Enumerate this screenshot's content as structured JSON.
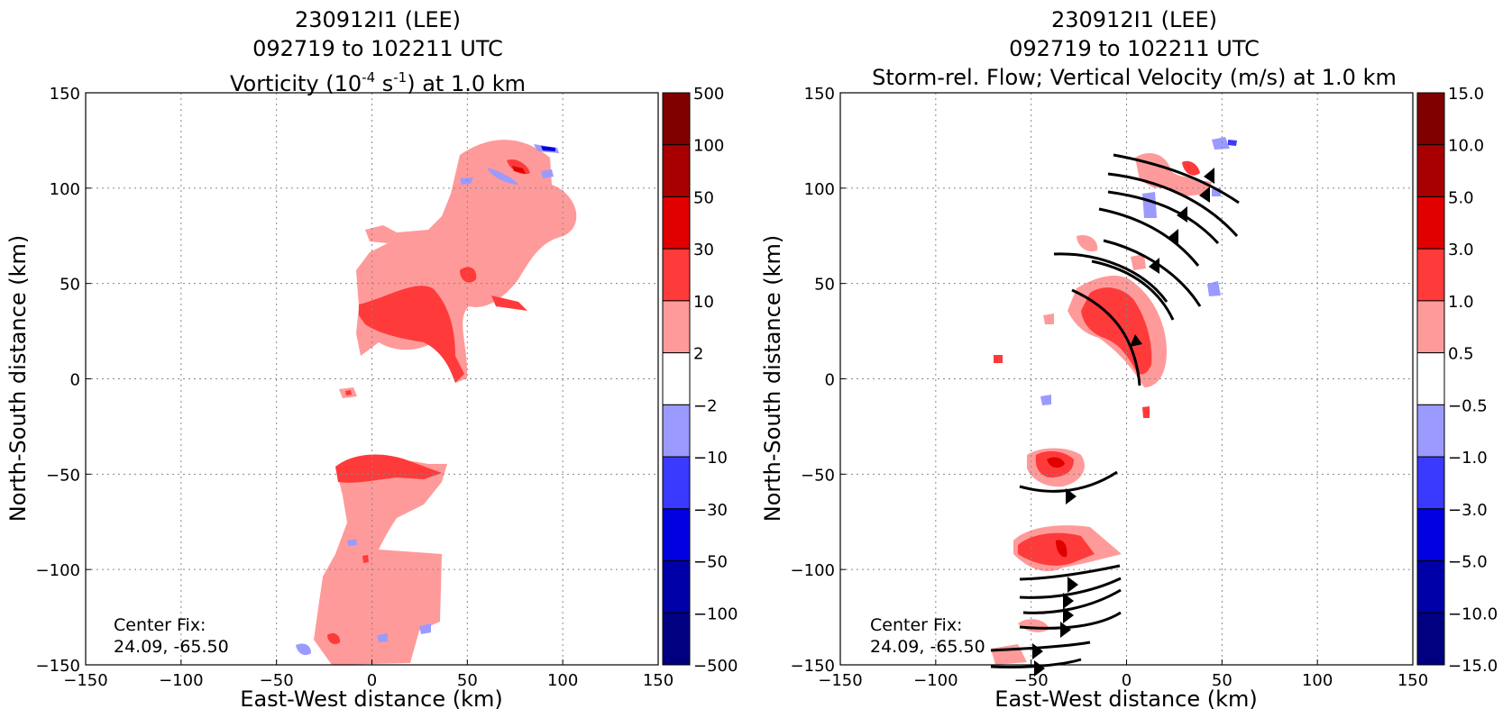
{
  "colors": {
    "pink": "#ff9a9a",
    "red": "#ff3a3a",
    "deep_red": "#e00000",
    "lavender": "#9a9aff",
    "blue": "#3a3aff",
    "dark_blue": "#0000e0",
    "grid": "#888888"
  },
  "colorbar_colors": [
    "#000080",
    "#0000a8",
    "#0000e0",
    "#3a3aff",
    "#9a9aff",
    "#ffffff",
    "#ff9a9a",
    "#ff3a3a",
    "#e00000",
    "#a80000",
    "#800000"
  ],
  "chart_data": [
    {
      "type": "heatmap",
      "title_lines": [
        "230912I1 (LEE)",
        "092719 to 102211 UTC"
      ],
      "title_var_prefix": "Vorticity (10",
      "title_var_exp1": "-4",
      "title_var_mid": " s",
      "title_var_exp2": "-1",
      "title_var_suffix": ") at 1.0 km",
      "xlabel": "East-West distance (km)",
      "ylabel": "North-South distance (km)",
      "xlim": [
        -150,
        150
      ],
      "ylim": [
        -150,
        150
      ],
      "xticks": [
        "−150",
        "−100",
        "−50",
        "0",
        "50",
        "100",
        "150"
      ],
      "yticks": [
        "150",
        "100",
        "50",
        "0",
        "−50",
        "−100",
        "−150"
      ],
      "grid": true,
      "colorbar_levels": [
        "500",
        "100",
        "50",
        "30",
        "10",
        "2",
        "−2",
        "−10",
        "−30",
        "−50",
        "−100",
        "−500"
      ],
      "annotation": [
        "Center Fix:",
        "24.09, -65.50"
      ]
    },
    {
      "type": "heatmap",
      "title_lines": [
        "230912I1 (LEE)",
        "092719 to 102211 UTC",
        "Storm-rel. Flow; Vertical Velocity (m/s) at 1.0 km"
      ],
      "xlabel": "East-West distance (km)",
      "ylabel": "North-South distance (km)",
      "xlim": [
        -150,
        150
      ],
      "ylim": [
        -150,
        150
      ],
      "xticks": [
        "−150",
        "−100",
        "−50",
        "0",
        "50",
        "100",
        "150"
      ],
      "yticks": [
        "150",
        "100",
        "50",
        "0",
        "−50",
        "−100",
        "−150"
      ],
      "grid": true,
      "colorbar_levels": [
        "15.0",
        "10.0",
        "5.0",
        "3.0",
        "1.0",
        "0.5",
        "−0.5",
        "−1.0",
        "−3.0",
        "−5.0",
        "−10.0",
        "−15.0"
      ],
      "annotation": [
        "Center Fix:",
        "24.09, -65.50"
      ]
    }
  ]
}
